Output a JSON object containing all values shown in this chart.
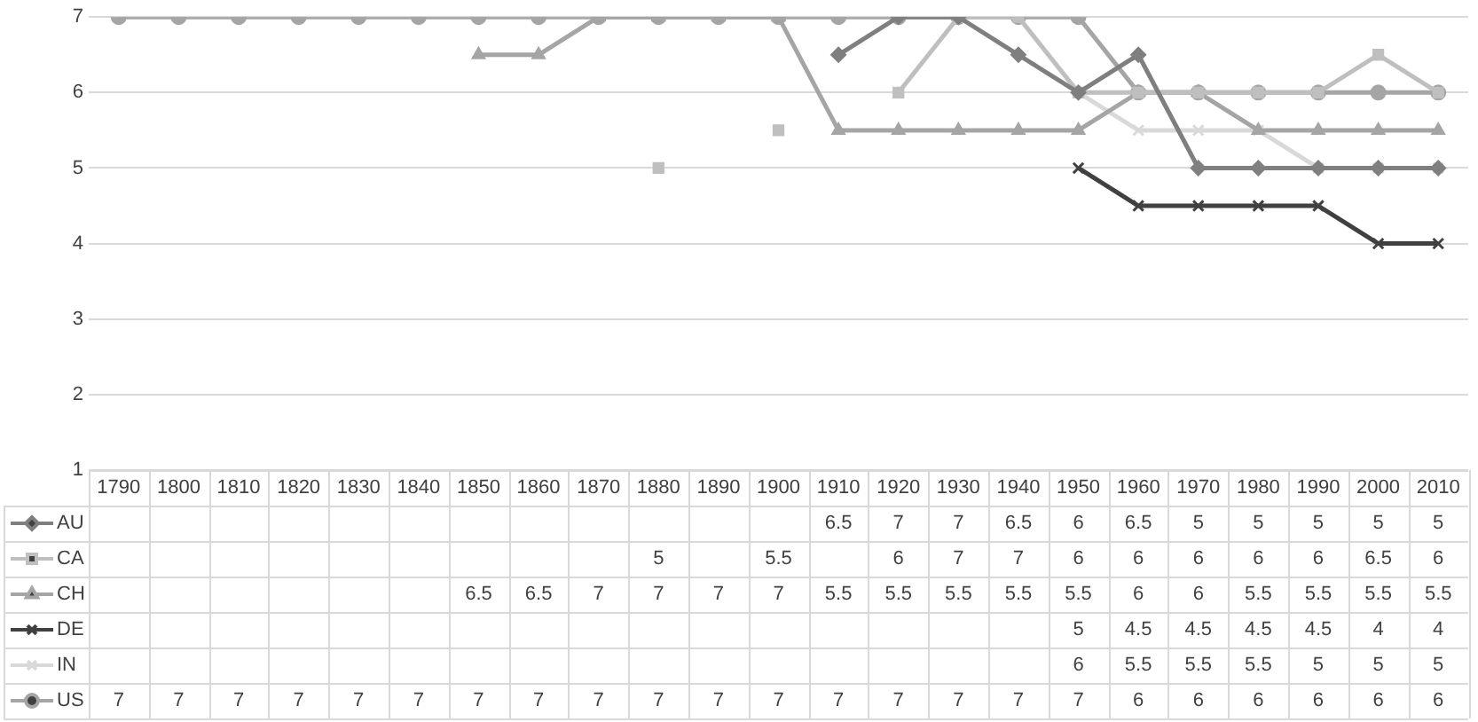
{
  "chart_data": {
    "type": "line",
    "categories": [
      "1790",
      "1800",
      "1810",
      "1820",
      "1830",
      "1840",
      "1850",
      "1860",
      "1870",
      "1880",
      "1890",
      "1900",
      "1910",
      "1920",
      "1930",
      "1940",
      "1950",
      "1960",
      "1970",
      "1980",
      "1990",
      "2000",
      "2010"
    ],
    "series": [
      {
        "name": "AU",
        "color": "#7f7f7f",
        "marker": "diamond",
        "values": [
          null,
          null,
          null,
          null,
          null,
          null,
          null,
          null,
          null,
          null,
          null,
          null,
          6.5,
          7,
          7,
          6.5,
          6,
          6.5,
          5,
          5,
          5,
          5,
          5
        ]
      },
      {
        "name": "CA",
        "color": "#bfbfbf",
        "marker": "square",
        "values": [
          null,
          null,
          null,
          null,
          null,
          null,
          null,
          null,
          null,
          5,
          null,
          5.5,
          null,
          6,
          7,
          7,
          6,
          6,
          6,
          6,
          6,
          6.5,
          6
        ]
      },
      {
        "name": "CH",
        "color": "#a5a5a5",
        "marker": "triangle",
        "values": [
          null,
          null,
          null,
          null,
          null,
          null,
          6.5,
          6.5,
          7,
          7,
          7,
          7,
          5.5,
          5.5,
          5.5,
          5.5,
          5.5,
          6,
          6,
          5.5,
          5.5,
          5.5,
          5.5
        ]
      },
      {
        "name": "DE",
        "color": "#404040",
        "marker": "cross",
        "values": [
          null,
          null,
          null,
          null,
          null,
          null,
          null,
          null,
          null,
          null,
          null,
          null,
          null,
          null,
          null,
          null,
          5,
          4.5,
          4.5,
          4.5,
          4.5,
          4,
          4
        ]
      },
      {
        "name": "IN",
        "color": "#d9d9d9",
        "marker": "cross",
        "values": [
          null,
          null,
          null,
          null,
          null,
          null,
          null,
          null,
          null,
          null,
          null,
          null,
          null,
          null,
          null,
          null,
          6,
          5.5,
          5.5,
          5.5,
          5,
          5,
          5
        ]
      },
      {
        "name": "US",
        "color": "#a5a5a5",
        "marker": "circle",
        "values": [
          7,
          7,
          7,
          7,
          7,
          7,
          7,
          7,
          7,
          7,
          7,
          7,
          7,
          7,
          7,
          7,
          7,
          6,
          6,
          6,
          6,
          6,
          6
        ]
      }
    ],
    "ylim": [
      1,
      7
    ],
    "yticks": [
      1,
      2,
      3,
      4,
      5,
      6,
      7
    ],
    "grid": "y",
    "legend": "bottom",
    "data_labels": true
  }
}
